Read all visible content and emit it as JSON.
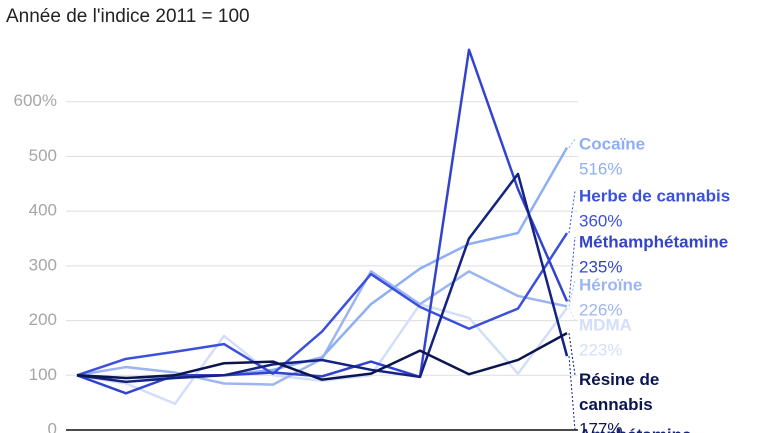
{
  "chart_data": {
    "type": "line",
    "title": "Année de l'indice 2011 = 100",
    "categories": [
      null,
      null,
      null,
      null,
      null,
      null,
      null,
      null,
      null,
      null,
      null
    ],
    "ylim": [
      0,
      700
    ],
    "yticks": [
      0,
      100,
      200,
      300,
      400,
      500,
      {
        "value": 600,
        "label": "600%"
      }
    ],
    "grid": true,
    "series": [
      {
        "name": "MDMA",
        "color": "#d3defa",
        "values": [
          100,
          85,
          48,
          172,
          100,
          90,
          100,
          230,
          205,
          103,
          223
        ],
        "value_labels": [
          null,
          null,
          null,
          null,
          null,
          null,
          null,
          null,
          null,
          null,
          "223%"
        ]
      },
      {
        "name": "Héroïne",
        "color": "#9cb5f2",
        "values": [
          100,
          115,
          105,
          85,
          83,
          130,
          290,
          230,
          290,
          245,
          226
        ],
        "value_labels": [
          null,
          null,
          null,
          null,
          null,
          null,
          null,
          null,
          null,
          null,
          "226%"
        ]
      },
      {
        "name": "Cocaïne",
        "color": "#8eaef5",
        "values": [
          100,
          95,
          97,
          100,
          110,
          133,
          230,
          295,
          340,
          360,
          516
        ],
        "value_labels": [
          null,
          null,
          null,
          null,
          null,
          null,
          null,
          null,
          null,
          null,
          "516%"
        ]
      },
      {
        "name": "Herbe de cannabis",
        "color": "#3b50dc",
        "values": [
          100,
          130,
          143,
          157,
          103,
          180,
          285,
          225,
          185,
          222,
          360
        ],
        "value_labels": [
          null,
          null,
          null,
          null,
          null,
          null,
          null,
          null,
          null,
          null,
          "360%"
        ]
      },
      {
        "name": "Méthamphétamine",
        "color": "#3344cc",
        "values": [
          100,
          67,
          100,
          100,
          105,
          98,
          125,
          97,
          695,
          440,
          235
        ],
        "value_labels": [
          null,
          null,
          null,
          null,
          null,
          null,
          null,
          null,
          null,
          null,
          "235%"
        ]
      },
      {
        "name": "Amphétamine",
        "color": "#142280",
        "values": [
          100,
          88,
          95,
          100,
          120,
          128,
          110,
          97,
          350,
          468,
          135
        ]
      },
      {
        "name": "Résine de cannabis",
        "color": "#0b154f",
        "values": [
          100,
          95,
          100,
          122,
          125,
          92,
          103,
          145,
          102,
          128,
          177
        ],
        "value_labels": [
          null,
          null,
          null,
          null,
          null,
          null,
          null,
          null,
          null,
          null,
          "177%"
        ]
      }
    ]
  }
}
